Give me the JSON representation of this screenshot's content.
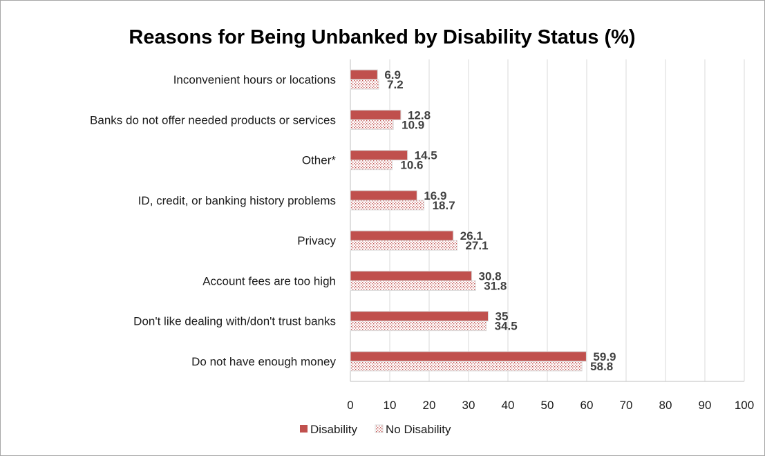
{
  "chart_data": {
    "type": "bar",
    "orientation": "horizontal",
    "title": "Reasons for Being Unbanked by Disability Status (%)",
    "xlabel": "",
    "ylabel": "",
    "xlim": [
      0,
      100
    ],
    "x_ticks": [
      "0",
      "10",
      "20",
      "30",
      "40",
      "50",
      "60",
      "70",
      "80",
      "90",
      "100"
    ],
    "grid": true,
    "legend_position": "bottom",
    "categories": [
      "Inconvenient hours or locations",
      "Banks do not offer needed products or services",
      "Other*",
      "ID, credit, or banking history problems",
      "Privacy",
      "Account fees are too high",
      "Don't like dealing with/don't trust banks",
      "Do not have enough money"
    ],
    "series": [
      {
        "name": "Disability",
        "color": "#c0504d",
        "pattern": "solid",
        "values": [
          6.9,
          12.8,
          14.5,
          16.9,
          26.1,
          30.8,
          35,
          59.9
        ],
        "labels": [
          "6.9",
          "12.8",
          "14.5",
          "16.9",
          "26.1",
          "30.8",
          "35",
          "59.9"
        ]
      },
      {
        "name": "No Disability",
        "color": "#c0504d",
        "pattern": "dotted",
        "values": [
          7.2,
          10.9,
          10.6,
          18.7,
          27.1,
          31.8,
          34.5,
          58.8
        ],
        "labels": [
          "7.2",
          "10.9",
          "10.6",
          "18.7",
          "27.1",
          "31.8",
          "34.5",
          "58.8"
        ]
      }
    ]
  }
}
